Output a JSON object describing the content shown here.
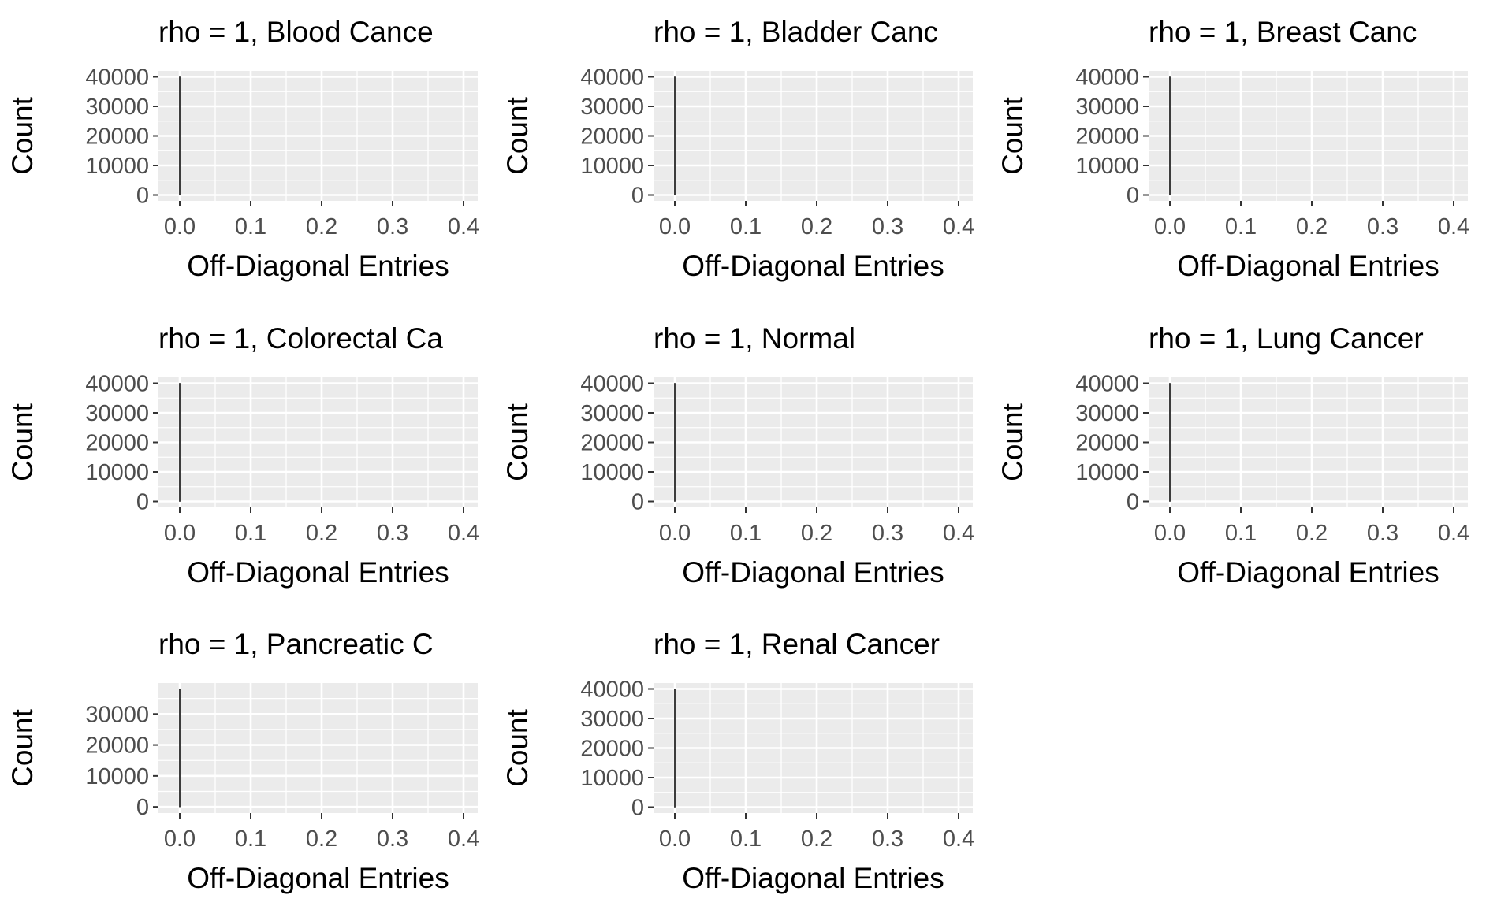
{
  "chart_data": [
    {
      "type": "bar",
      "title": "rho = 1, Blood Cance",
      "xlabel": "Off-Diagonal Entries",
      "ylabel": "Count",
      "xlim": [
        -0.03,
        0.42
      ],
      "ylim": [
        -2000,
        42000
      ],
      "x_ticks": [
        0.0,
        0.1,
        0.2,
        0.3,
        0.4
      ],
      "x_tick_labels": [
        "0.0",
        "0.1",
        "0.2",
        "0.3",
        "0.4"
      ],
      "y_ticks": [
        0,
        10000,
        20000,
        30000,
        40000
      ],
      "y_tick_labels": [
        "0",
        "10000",
        "20000",
        "30000",
        "40000"
      ],
      "bars": [
        {
          "x": 0.0,
          "value": 40000
        }
      ],
      "grid": true
    },
    {
      "type": "bar",
      "title": "rho = 1, Bladder Canc",
      "xlabel": "Off-Diagonal Entries",
      "ylabel": "Count",
      "xlim": [
        -0.03,
        0.42
      ],
      "ylim": [
        -2000,
        42000
      ],
      "x_ticks": [
        0.0,
        0.1,
        0.2,
        0.3,
        0.4
      ],
      "x_tick_labels": [
        "0.0",
        "0.1",
        "0.2",
        "0.3",
        "0.4"
      ],
      "y_ticks": [
        0,
        10000,
        20000,
        30000,
        40000
      ],
      "y_tick_labels": [
        "0",
        "10000",
        "20000",
        "30000",
        "40000"
      ],
      "bars": [
        {
          "x": 0.0,
          "value": 40000
        }
      ],
      "grid": true
    },
    {
      "type": "bar",
      "title": "rho = 1, Breast Canc",
      "xlabel": "Off-Diagonal Entries",
      "ylabel": "Count",
      "xlim": [
        -0.03,
        0.42
      ],
      "ylim": [
        -2000,
        42000
      ],
      "x_ticks": [
        0.0,
        0.1,
        0.2,
        0.3,
        0.4
      ],
      "x_tick_labels": [
        "0.0",
        "0.1",
        "0.2",
        "0.3",
        "0.4"
      ],
      "y_ticks": [
        0,
        10000,
        20000,
        30000,
        40000
      ],
      "y_tick_labels": [
        "0",
        "10000",
        "20000",
        "30000",
        "40000"
      ],
      "bars": [
        {
          "x": 0.0,
          "value": 40000
        }
      ],
      "grid": true
    },
    {
      "type": "bar",
      "title": "rho = 1, Colorectal Ca",
      "xlabel": "Off-Diagonal Entries",
      "ylabel": "Count",
      "xlim": [
        -0.03,
        0.42
      ],
      "ylim": [
        -2000,
        42000
      ],
      "x_ticks": [
        0.0,
        0.1,
        0.2,
        0.3,
        0.4
      ],
      "x_tick_labels": [
        "0.0",
        "0.1",
        "0.2",
        "0.3",
        "0.4"
      ],
      "y_ticks": [
        0,
        10000,
        20000,
        30000,
        40000
      ],
      "y_tick_labels": [
        "0",
        "10000",
        "20000",
        "30000",
        "40000"
      ],
      "bars": [
        {
          "x": 0.0,
          "value": 40000
        }
      ],
      "grid": true
    },
    {
      "type": "bar",
      "title": "rho = 1, Normal",
      "xlabel": "Off-Diagonal Entries",
      "ylabel": "Count",
      "xlim": [
        -0.03,
        0.42
      ],
      "ylim": [
        -2000,
        42000
      ],
      "x_ticks": [
        0.0,
        0.1,
        0.2,
        0.3,
        0.4
      ],
      "x_tick_labels": [
        "0.0",
        "0.1",
        "0.2",
        "0.3",
        "0.4"
      ],
      "y_ticks": [
        0,
        10000,
        20000,
        30000,
        40000
      ],
      "y_tick_labels": [
        "0",
        "10000",
        "20000",
        "30000",
        "40000"
      ],
      "bars": [
        {
          "x": 0.0,
          "value": 40000
        }
      ],
      "grid": true
    },
    {
      "type": "bar",
      "title": "rho = 1, Lung Cancer",
      "xlabel": "Off-Diagonal Entries",
      "ylabel": "Count",
      "xlim": [
        -0.03,
        0.42
      ],
      "ylim": [
        -2000,
        42000
      ],
      "x_ticks": [
        0.0,
        0.1,
        0.2,
        0.3,
        0.4
      ],
      "x_tick_labels": [
        "0.0",
        "0.1",
        "0.2",
        "0.3",
        "0.4"
      ],
      "y_ticks": [
        0,
        10000,
        20000,
        30000,
        40000
      ],
      "y_tick_labels": [
        "0",
        "10000",
        "20000",
        "30000",
        "40000"
      ],
      "bars": [
        {
          "x": 0.0,
          "value": 40000
        }
      ],
      "grid": true
    },
    {
      "type": "bar",
      "title": "rho = 1, Pancreatic C",
      "xlabel": "Off-Diagonal Entries",
      "ylabel": "Count",
      "xlim": [
        -0.03,
        0.42
      ],
      "ylim": [
        -2000,
        40000
      ],
      "x_ticks": [
        0.0,
        0.1,
        0.2,
        0.3,
        0.4
      ],
      "x_tick_labels": [
        "0.0",
        "0.1",
        "0.2",
        "0.3",
        "0.4"
      ],
      "y_ticks": [
        0,
        10000,
        20000,
        30000
      ],
      "y_tick_labels": [
        "0",
        "10000",
        "20000",
        "30000"
      ],
      "bars": [
        {
          "x": 0.0,
          "value": 38000
        }
      ],
      "grid": true
    },
    {
      "type": "bar",
      "title": "rho = 1, Renal Cancer",
      "xlabel": "Off-Diagonal Entries",
      "ylabel": "Count",
      "xlim": [
        -0.03,
        0.42
      ],
      "ylim": [
        -2000,
        42000
      ],
      "x_ticks": [
        0.0,
        0.1,
        0.2,
        0.3,
        0.4
      ],
      "x_tick_labels": [
        "0.0",
        "0.1",
        "0.2",
        "0.3",
        "0.4"
      ],
      "y_ticks": [
        0,
        10000,
        20000,
        30000,
        40000
      ],
      "y_tick_labels": [
        "0",
        "10000",
        "20000",
        "30000",
        "40000"
      ],
      "bars": [
        {
          "x": 0.0,
          "value": 40000
        }
      ],
      "grid": true
    }
  ],
  "colors": {
    "panel_background": "#ebebeb",
    "grid_major": "#ffffff",
    "bar_outline": "#000000",
    "tick_text": "#4d4d4d",
    "axis_text": "#000000"
  }
}
